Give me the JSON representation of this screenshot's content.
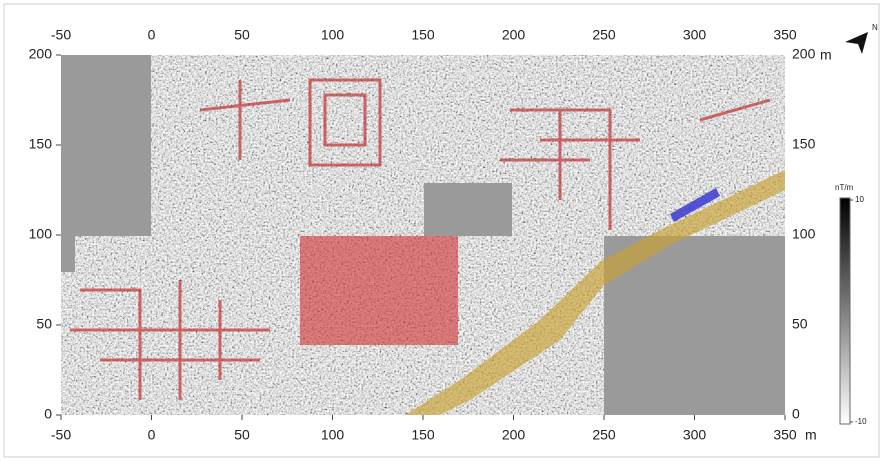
{
  "map": {
    "x_ticks": [
      -50,
      0,
      50,
      100,
      150,
      200,
      250,
      300,
      350
    ],
    "y_ticks": [
      0,
      50,
      100,
      150,
      200
    ],
    "unit": "m",
    "legend": {
      "title": "nT/m",
      "ticks": [
        10,
        -10
      ]
    }
  }
}
